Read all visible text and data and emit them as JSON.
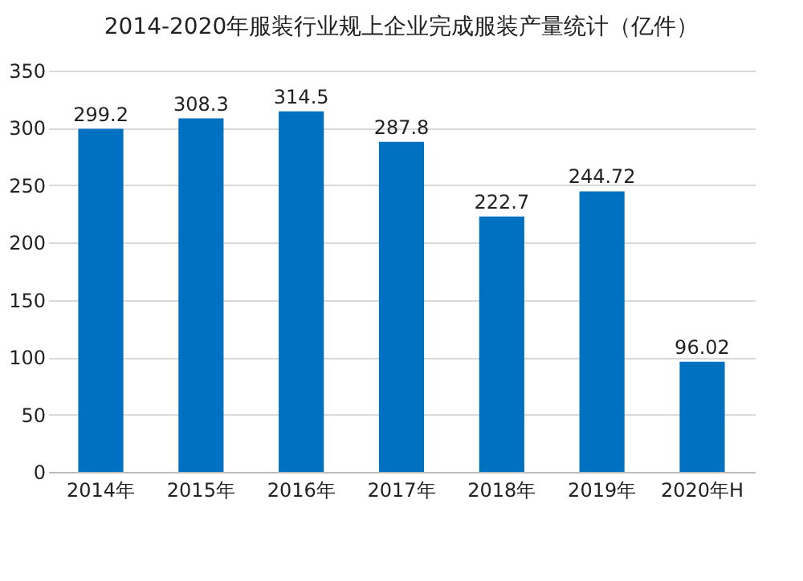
{
  "chart_data": {
    "type": "bar",
    "title": "2014-2020年服装行业规上企业完成服装产量统计（亿件）",
    "categories": [
      "2014年",
      "2015年",
      "2016年",
      "2017年",
      "2018年",
      "2019年",
      "2020年H"
    ],
    "values": [
      299.2,
      308.3,
      314.5,
      287.8,
      222.7,
      244.72,
      96.02
    ],
    "color": "#0070c0",
    "ylim": [
      0,
      350
    ],
    "yticks": [
      0,
      50,
      100,
      150,
      200,
      250,
      300,
      350
    ],
    "grid": "y",
    "data_labels": true
  }
}
